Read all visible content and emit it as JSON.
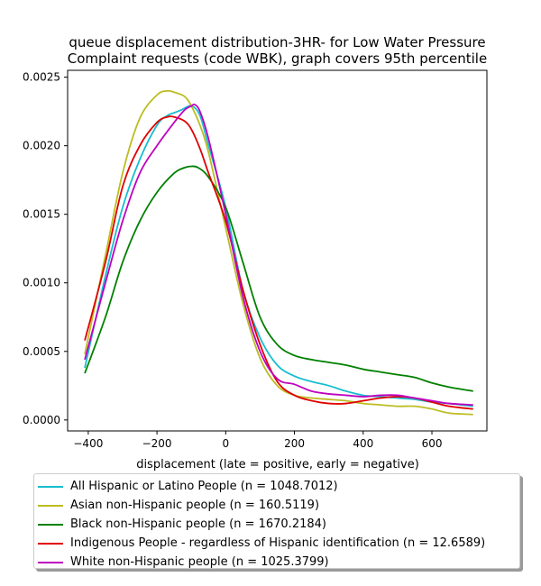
{
  "chart_data": {
    "type": "line",
    "title": "queue displacement distribution-3HR-  for Low Water Pressure\nComplaint  requests (code WBK), graph covers 95th percentile",
    "xlabel": "displacement (late = positive, early = negative)",
    "ylabel": "",
    "xlim": [
      -460,
      760
    ],
    "ylim": [
      -8e-05,
      0.00255
    ],
    "xticks": [
      -400,
      -200,
      0,
      200,
      400,
      600
    ],
    "yticks": [
      0.0,
      0.0005,
      0.001,
      0.0015,
      0.002,
      0.0025
    ],
    "xtick_labels": [
      "−400",
      "−200",
      "0",
      "200",
      "400",
      "600"
    ],
    "ytick_labels": [
      "0.0000",
      "0.0005",
      "0.0010",
      "0.0015",
      "0.0020",
      "0.0025"
    ],
    "grid": false,
    "legend_position": "below",
    "series": [
      {
        "name": "All Hispanic or Latino People (n = 1048.7012)",
        "color": "#17becf",
        "x": [
          -410,
          -350,
          -300,
          -250,
          -200,
          -170,
          -150,
          -130,
          -100,
          -75,
          -50,
          0,
          50,
          100,
          150,
          200,
          250,
          300,
          350,
          400,
          450,
          500,
          550,
          600,
          650,
          720
        ],
        "y": [
          0.00038,
          0.00105,
          0.00155,
          0.0019,
          0.00215,
          0.00222,
          0.00224,
          0.00226,
          0.00229,
          0.00222,
          0.002,
          0.00155,
          0.00095,
          0.0006,
          0.0004,
          0.00032,
          0.00028,
          0.00025,
          0.00021,
          0.00018,
          0.00017,
          0.00016,
          0.00015,
          0.00013,
          0.00012,
          0.0001
        ]
      },
      {
        "name": "Asian non-Hispanic people (n = 160.5119)",
        "color": "#bcbd22",
        "x": [
          -410,
          -350,
          -300,
          -250,
          -200,
          -170,
          -150,
          -120,
          -100,
          -75,
          -50,
          0,
          50,
          100,
          150,
          200,
          250,
          300,
          350,
          400,
          450,
          500,
          550,
          600,
          650,
          720
        ],
        "y": [
          0.00048,
          0.0012,
          0.0018,
          0.0022,
          0.00237,
          0.0024,
          0.00239,
          0.00236,
          0.00229,
          0.00215,
          0.00195,
          0.0014,
          0.00085,
          0.00045,
          0.00025,
          0.00018,
          0.00016,
          0.00015,
          0.00014,
          0.00012,
          0.00011,
          0.0001,
          0.0001,
          8e-05,
          5e-05,
          4e-05
        ]
      },
      {
        "name": "Black non-Hispanic people (n = 1670.2184)",
        "color": "#008000",
        "x": [
          -410,
          -350,
          -300,
          -250,
          -200,
          -150,
          -120,
          -100,
          -80,
          -50,
          0,
          50,
          100,
          150,
          200,
          250,
          300,
          350,
          400,
          450,
          500,
          550,
          600,
          650,
          720
        ],
        "y": [
          0.00034,
          0.00075,
          0.00115,
          0.00145,
          0.00166,
          0.0018,
          0.00184,
          0.00185,
          0.00184,
          0.00177,
          0.00155,
          0.00115,
          0.00075,
          0.00055,
          0.00047,
          0.00044,
          0.00042,
          0.0004,
          0.00037,
          0.00035,
          0.00033,
          0.00031,
          0.00027,
          0.00024,
          0.00021
        ]
      },
      {
        "name": "Indigenous People - regardless of Hispanic identification (n = 12.6589)",
        "color": "#e00000",
        "x": [
          -410,
          -350,
          -300,
          -250,
          -200,
          -170,
          -150,
          -120,
          -100,
          -75,
          -50,
          0,
          50,
          100,
          150,
          200,
          250,
          300,
          350,
          400,
          450,
          500,
          550,
          600,
          650,
          720
        ],
        "y": [
          0.00058,
          0.00115,
          0.0017,
          0.002,
          0.00217,
          0.00221,
          0.00221,
          0.00218,
          0.00212,
          0.00198,
          0.0018,
          0.00145,
          0.00095,
          0.00055,
          0.00028,
          0.00018,
          0.00014,
          0.00012,
          0.00012,
          0.00014,
          0.00016,
          0.00017,
          0.00016,
          0.00013,
          0.0001,
          8e-05
        ]
      },
      {
        "name": "White non-Hispanic people (n = 1025.3799)",
        "color": "#bf00bf",
        "x": [
          -410,
          -350,
          -300,
          -250,
          -200,
          -150,
          -120,
          -100,
          -90,
          -75,
          -50,
          0,
          50,
          100,
          150,
          200,
          250,
          300,
          350,
          400,
          450,
          500,
          550,
          600,
          650,
          720
        ],
        "y": [
          0.00044,
          0.001,
          0.00145,
          0.0018,
          0.002,
          0.00217,
          0.00226,
          0.00229,
          0.0023,
          0.00225,
          0.00205,
          0.0015,
          0.0009,
          0.0005,
          0.0003,
          0.00026,
          0.00021,
          0.00019,
          0.00018,
          0.00017,
          0.00018,
          0.00018,
          0.00016,
          0.00014,
          0.00012,
          0.00011
        ]
      }
    ]
  }
}
